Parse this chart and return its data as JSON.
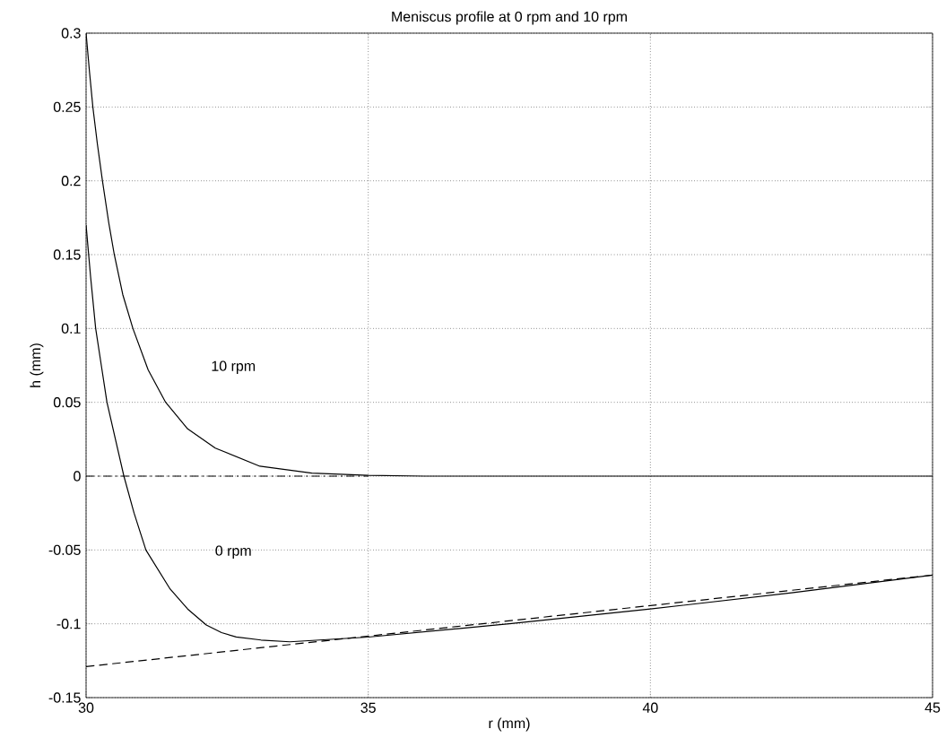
{
  "chart_data": {
    "type": "line",
    "title": "Meniscus profile at 0 rpm and 10 rpm",
    "xlabel": "r (mm)",
    "ylabel": "h (mm)",
    "xlim": [
      30,
      45
    ],
    "ylim": [
      -0.15,
      0.3
    ],
    "xticks": [
      30,
      35,
      40,
      45
    ],
    "yticks": [
      -0.15,
      -0.1,
      -0.05,
      0,
      0.05,
      0.1,
      0.15,
      0.2,
      0.25,
      0.3
    ],
    "grid": true,
    "line_style": "solid",
    "marker": "none",
    "series": [
      {
        "color": "#000000",
        "x": [
          30,
          30.06,
          30.12,
          30.2,
          30.29,
          30.4,
          30.5,
          30.65,
          30.83,
          31.1,
          31.41,
          31.8,
          32.29,
          33.08,
          34,
          35,
          36,
          45
        ],
        "values": [
          0.3,
          0.274,
          0.25,
          0.225,
          0.2,
          0.172,
          0.15,
          0.123,
          0.1,
          0.072,
          0.05,
          0.032,
          0.019,
          0.0067,
          0.002,
          0.0005,
          0,
          0
        ]
      },
      {
        "color": "#000000",
        "x": [
          30,
          30.08,
          30.17,
          30.27,
          30.37,
          30.52,
          30.67,
          30.85,
          31.06,
          31.49,
          31.8,
          32.13,
          32.4,
          32.66,
          33.1,
          33.61,
          35,
          37.5,
          40,
          42.5,
          45
        ],
        "values": [
          0.17,
          0.135,
          0.1,
          0.075,
          0.05,
          0.025,
          0,
          -0.025,
          -0.05,
          -0.0765,
          -0.09,
          -0.1008,
          -0.106,
          -0.1089,
          -0.111,
          -0.1122,
          -0.109,
          -0.1,
          -0.09,
          -0.079,
          -0.067
        ]
      },
      {
        "color": "#000000",
        "line_style": "dashed",
        "x": [
          30,
          45
        ],
        "values": [
          -0.129,
          -0.067
        ]
      },
      {
        "color": "#000000",
        "line_style": "dashdot",
        "x": [
          30,
          35
        ],
        "values": [
          0,
          0
        ]
      }
    ],
    "annotations": [
      "10 rpm",
      "0 rpm"
    ]
  }
}
